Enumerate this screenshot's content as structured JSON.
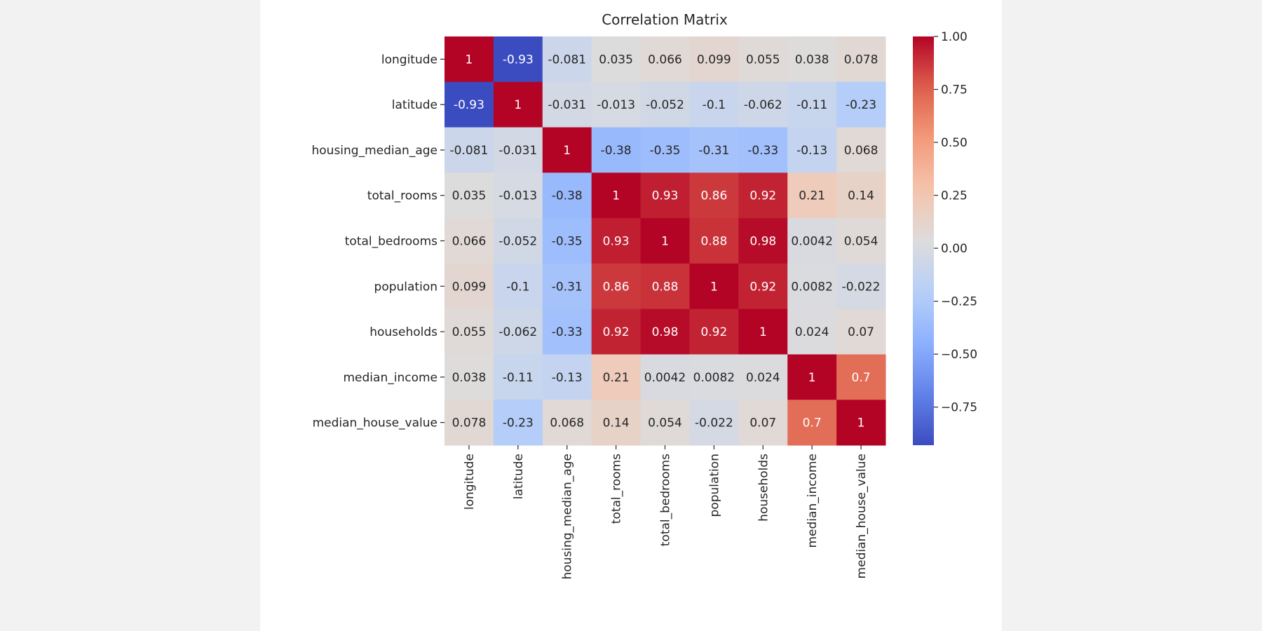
{
  "chart_data": {
    "type": "heatmap",
    "title": "Correlation Matrix",
    "colormap": "coolwarm",
    "labels": [
      "longitude",
      "latitude",
      "housing_median_age",
      "total_rooms",
      "total_bedrooms",
      "population",
      "households",
      "median_income",
      "median_house_value"
    ],
    "values": [
      [
        1,
        -0.93,
        -0.081,
        0.035,
        0.066,
        0.099,
        0.055,
        0.038,
        0.078
      ],
      [
        -0.93,
        1,
        -0.031,
        -0.013,
        -0.052,
        -0.1,
        -0.062,
        -0.11,
        -0.23
      ],
      [
        -0.081,
        -0.031,
        1,
        -0.38,
        -0.35,
        -0.31,
        -0.33,
        -0.13,
        0.068
      ],
      [
        0.035,
        -0.013,
        -0.38,
        1,
        0.93,
        0.86,
        0.92,
        0.21,
        0.14
      ],
      [
        0.066,
        -0.052,
        -0.35,
        0.93,
        1,
        0.88,
        0.98,
        0.0042,
        0.054
      ],
      [
        0.099,
        -0.1,
        -0.31,
        0.86,
        0.88,
        1,
        0.92,
        0.0082,
        -0.022
      ],
      [
        0.055,
        -0.062,
        -0.33,
        0.92,
        0.98,
        0.92,
        1,
        0.024,
        0.07
      ],
      [
        0.038,
        -0.11,
        -0.13,
        0.21,
        0.0042,
        0.0082,
        0.024,
        1,
        0.7
      ],
      [
        0.078,
        -0.23,
        0.068,
        0.14,
        0.054,
        -0.022,
        0.07,
        0.7,
        1
      ]
    ],
    "annotations": [
      [
        "1",
        "-0.93",
        "-0.081",
        "0.035",
        "0.066",
        "0.099",
        "0.055",
        "0.038",
        "0.078"
      ],
      [
        "-0.93",
        "1",
        "-0.031",
        "-0.013",
        "-0.052",
        "-0.1",
        "-0.062",
        "-0.11",
        "-0.23"
      ],
      [
        "-0.081",
        "-0.031",
        "1",
        "-0.38",
        "-0.35",
        "-0.31",
        "-0.33",
        "-0.13",
        "0.068"
      ],
      [
        "0.035",
        "-0.013",
        "-0.38",
        "1",
        "0.93",
        "0.86",
        "0.92",
        "0.21",
        "0.14"
      ],
      [
        "0.066",
        "-0.052",
        "-0.35",
        "0.93",
        "1",
        "0.88",
        "0.98",
        "0.0042",
        "0.054"
      ],
      [
        "0.099",
        "-0.1",
        "-0.31",
        "0.86",
        "0.88",
        "1",
        "0.92",
        "0.0082",
        "-0.022"
      ],
      [
        "0.055",
        "-0.062",
        "-0.33",
        "0.92",
        "0.98",
        "0.92",
        "1",
        "0.024",
        "0.07"
      ],
      [
        "0.038",
        "-0.11",
        "-0.13",
        "0.21",
        "0.0042",
        "0.0082",
        "0.024",
        "1",
        "0.7"
      ],
      [
        "0.078",
        "-0.23",
        "0.068",
        "0.14",
        "0.054",
        "-0.022",
        "0.07",
        "0.7",
        "1"
      ]
    ],
    "colorbar": {
      "range": [
        -0.93,
        1.0
      ],
      "ticks": [
        1.0,
        0.75,
        0.5,
        0.25,
        0.0,
        -0.25,
        -0.5,
        -0.75
      ],
      "tick_labels": [
        "1.00",
        "0.75",
        "0.50",
        "0.25",
        "0.00",
        "−0.25",
        "−0.50",
        "−0.75"
      ]
    }
  }
}
